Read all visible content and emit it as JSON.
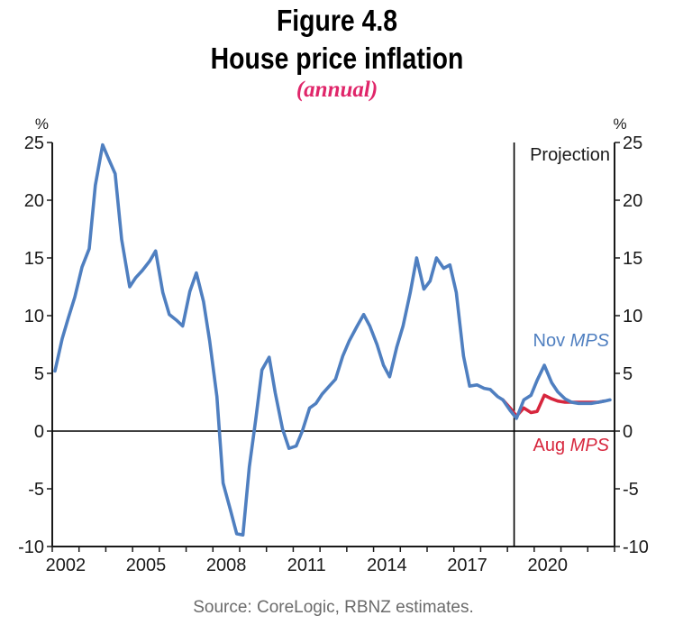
{
  "figure": {
    "number": "Figure 4.8",
    "title": "House price inflation",
    "subtitle": "(annual)",
    "source": "Source: CoreLogic, RBNZ estimates."
  },
  "colors": {
    "nov_series": "#4f7fc0",
    "aug_series": "#d7263d",
    "subtitle": "#e0266a",
    "axis": "#1a1a1a"
  },
  "chart_data": {
    "type": "line",
    "title": "House price inflation",
    "subtitle": "(annual)",
    "xlabel": "",
    "ylabel_left": "%",
    "ylabel_right": "%",
    "xlim": [
      2002,
      2023
    ],
    "ylim": [
      -10,
      25
    ],
    "y_ticks": [
      25,
      20,
      15,
      10,
      5,
      0,
      -5,
      -10
    ],
    "x_tick_labels": [
      "2002",
      "2005",
      "2008",
      "2011",
      "2014",
      "2017",
      "2020"
    ],
    "projection_start": 2019.25,
    "projection_label": "Projection",
    "zero_line": true,
    "grid": false,
    "series": [
      {
        "name": "Nov MPS",
        "label_prefix": "Nov",
        "label_emph": "MPS",
        "x": [
          2002.1,
          2002.37,
          2002.6,
          2002.84,
          2003.11,
          2003.38,
          2003.61,
          2003.88,
          2004.12,
          2004.35,
          2004.59,
          2004.89,
          2005.12,
          2005.36,
          2005.63,
          2005.86,
          2006.13,
          2006.37,
          2006.64,
          2006.87,
          2007.14,
          2007.38,
          2007.65,
          2007.88,
          2008.15,
          2008.38,
          2008.65,
          2008.89,
          2009.12,
          2009.36,
          2009.6,
          2009.83,
          2010.1,
          2010.33,
          2010.6,
          2010.84,
          2011.11,
          2011.34,
          2011.61,
          2011.85,
          2012.08,
          2012.35,
          2012.58,
          2012.85,
          2013.09,
          2013.39,
          2013.63,
          2013.86,
          2014.13,
          2014.37,
          2014.6,
          2014.87,
          2015.1,
          2015.37,
          2015.61,
          2015.88,
          2016.11,
          2016.35,
          2016.62,
          2016.85,
          2017.09,
          2017.36,
          2017.59,
          2017.86,
          2018.13,
          2018.36,
          2018.63,
          2018.83,
          2019.1,
          2019.34,
          2019.61,
          2019.88,
          2020.11,
          2020.38,
          2020.65,
          2020.88,
          2021.15,
          2021.39,
          2021.66,
          2021.89,
          2022.13,
          2022.4,
          2022.63,
          2022.83
        ],
        "y": [
          5.2,
          8.0,
          9.8,
          11.6,
          14.2,
          15.8,
          21.3,
          24.8,
          23.5,
          22.3,
          16.6,
          12.5,
          13.3,
          13.9,
          14.7,
          15.6,
          12.0,
          10.1,
          9.6,
          9.1,
          12.1,
          13.7,
          11.2,
          7.8,
          3.0,
          -4.5,
          -6.8,
          -8.9,
          -9.0,
          -3.1,
          1.0,
          5.3,
          6.4,
          3.3,
          0.2,
          -1.5,
          -1.3,
          0.0,
          2.0,
          2.4,
          3.2,
          3.9,
          4.5,
          6.5,
          7.8,
          9.1,
          10.1,
          9.1,
          7.5,
          5.7,
          4.7,
          7.3,
          9.1,
          12.0,
          15.0,
          12.3,
          13.0,
          15.0,
          14.1,
          14.4,
          12.0,
          6.5,
          3.9,
          4.0,
          3.7,
          3.6,
          3.0,
          2.7,
          1.8,
          1.1,
          2.7,
          3.1,
          4.4,
          5.7,
          4.2,
          3.4,
          2.8,
          2.5,
          2.4,
          2.4,
          2.4,
          2.5,
          2.6,
          2.7
        ]
      },
      {
        "name": "Aug MPS",
        "label_prefix": "Aug",
        "label_emph": "MPS",
        "x": [
          2018.83,
          2019.1,
          2019.34,
          2019.61,
          2019.88,
          2020.11,
          2020.38,
          2020.65,
          2020.88,
          2021.15,
          2021.39,
          2021.66,
          2021.89,
          2022.13,
          2022.4,
          2022.6
        ],
        "y": [
          2.7,
          2.0,
          1.3,
          2.0,
          1.6,
          1.7,
          3.1,
          2.8,
          2.6,
          2.5,
          2.5,
          2.5,
          2.5,
          2.5,
          2.5,
          2.6
        ]
      }
    ]
  }
}
